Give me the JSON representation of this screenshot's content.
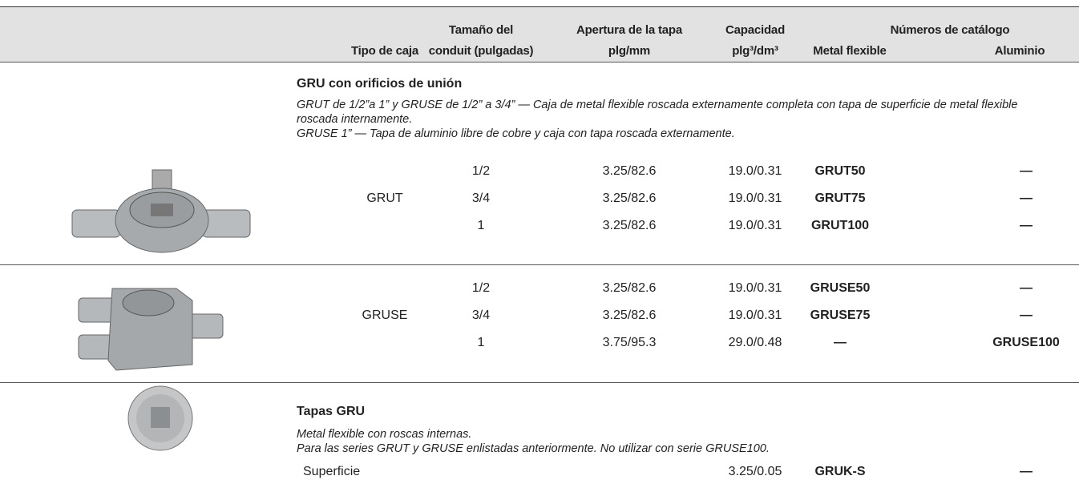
{
  "header": {
    "columns": [
      [
        "Tipo de caja"
      ],
      [
        "Tamaño del",
        "conduit (pulgadas)"
      ],
      [
        "Apertura de la tapa",
        "plg/mm"
      ],
      [
        "Capacidad",
        "plg³/dm³"
      ]
    ],
    "catalog_group": "Números de catálogo",
    "catalog_columns": [
      "Metal flexible",
      "Aluminio"
    ]
  },
  "sections": [
    {
      "title": "GRU con orificios de unión",
      "description": [
        "GRUT de 1/2”a 1” y GRUSE de 1/2” a 3/4” — Caja de metal flexible roscada externamente completa con tapa de superficie de metal flexible roscada internamente.",
        "GRUSE 1” — Tapa de aluminio libre de cobre y caja con tapa roscada externamente."
      ],
      "type": "GRUT",
      "rows": [
        {
          "size": "1/2",
          "opening": "3.25/82.6",
          "capacity": "19.0/0.31",
          "metal": "GRUT50",
          "aluminum": "—"
        },
        {
          "size": "3/4",
          "opening": "3.25/82.6",
          "capacity": "19.0/0.31",
          "metal": "GRUT75",
          "aluminum": "—"
        },
        {
          "size": "1",
          "opening": "3.25/82.6",
          "capacity": "19.0/0.31",
          "metal": "GRUT100",
          "aluminum": "—"
        }
      ]
    },
    {
      "type": "GRUSE",
      "rows": [
        {
          "size": "1/2",
          "opening": "3.25/82.6",
          "capacity": "19.0/0.31",
          "metal": "GRUSE50",
          "aluminum": "—"
        },
        {
          "size": "3/4",
          "opening": "3.25/82.6",
          "capacity": "19.0/0.31",
          "metal": "GRUSE75",
          "aluminum": "—"
        },
        {
          "size": "1",
          "opening": "3.75/95.3",
          "capacity": "29.0/0.48",
          "metal": "—",
          "aluminum": "GRUSE100"
        }
      ]
    },
    {
      "title": "Tapas GRU",
      "description": [
        "Metal flexible con roscas internas.",
        "Para las series GRUT y GRUSE enlistadas anteriormente. No utilizar con serie GRUSE100."
      ],
      "rows": [
        {
          "type": "Superficie",
          "capacity": "3.25/0.05",
          "metal": "GRUK-S",
          "aluminum": "—"
        }
      ]
    }
  ]
}
